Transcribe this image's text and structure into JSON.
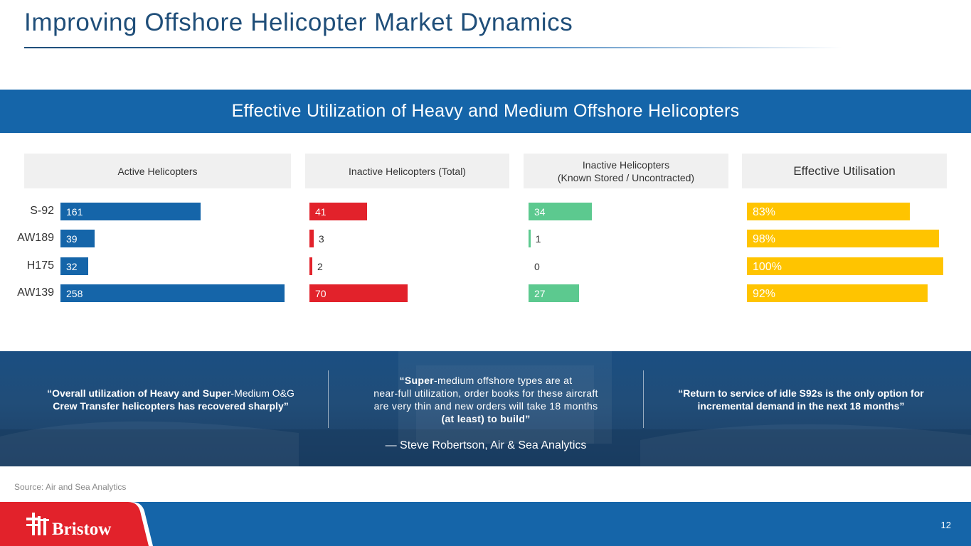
{
  "header": {
    "title": "Improving Offshore Helicopter Market Dynamics"
  },
  "banner": {
    "title": "Effective Utilization of Heavy and Medium Offshore Helicopters"
  },
  "chart_data": {
    "type": "bar",
    "orientation": "horizontal",
    "categories": [
      "S-92",
      "AW189",
      "H175",
      "AW139"
    ],
    "panels": [
      {
        "header": "Active Helicopters",
        "values": [
          161,
          39,
          32,
          258
        ],
        "labels": [
          "161",
          "39",
          "32",
          "258"
        ],
        "color": "#1565a9"
      },
      {
        "header": "Inactive Helicopters (Total)",
        "values": [
          41,
          3,
          2,
          70
        ],
        "labels": [
          "41",
          "3",
          "2",
          "70"
        ],
        "color": "#e2222b"
      },
      {
        "header_line1": "Inactive Helicopters",
        "header_line2": "(Known Stored / Uncontracted)",
        "values": [
          34,
          1,
          0,
          27
        ],
        "labels": [
          "34",
          "1",
          "0",
          "27"
        ],
        "color": "#5cc98f"
      },
      {
        "header": "Effective Utilisation",
        "values": [
          83,
          98,
          100,
          92
        ],
        "labels": [
          "83%",
          "98%",
          "100%",
          "92%"
        ],
        "color": "#ffc400"
      }
    ]
  },
  "quotes": {
    "left": {
      "bold_a": "“Overall utilization of Heavy and Super",
      "normal": "-Medium O&G",
      "bold_b": "Crew Transfer helicopters has recovered sharply”"
    },
    "center": {
      "bold_a": "“Super",
      "line1_rest": "-medium offshore types are at",
      "line2": "near-full utilization, order books for these aircraft",
      "line3": "are very thin and new orders will take 18 months",
      "line4_bold": "(at least) to build”"
    },
    "right": {
      "line1": "“Return to service of idle S92s is the only option for",
      "line2": "incremental demand in the next 18 months”"
    },
    "attribution": "— Steve Robertson, Air & Sea Analytics"
  },
  "source": "Source: Air and Sea Analytics",
  "footer": {
    "logo_text": "Bristow",
    "page_number": "12",
    "brand_red": "#e2222b",
    "brand_blue": "#1565a9"
  }
}
